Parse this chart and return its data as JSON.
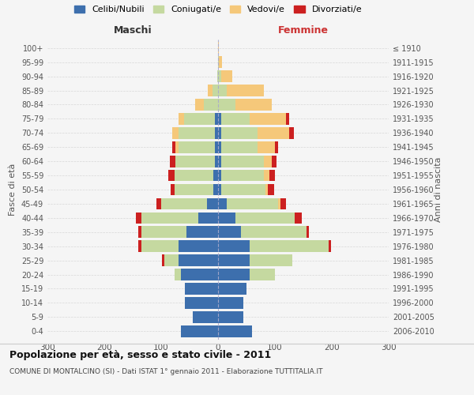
{
  "age_groups": [
    "0-4",
    "5-9",
    "10-14",
    "15-19",
    "20-24",
    "25-29",
    "30-34",
    "35-39",
    "40-44",
    "45-49",
    "50-54",
    "55-59",
    "60-64",
    "65-69",
    "70-74",
    "75-79",
    "80-84",
    "85-89",
    "90-94",
    "95-99",
    "100+"
  ],
  "birth_years": [
    "2006-2010",
    "2001-2005",
    "1996-2000",
    "1991-1995",
    "1986-1990",
    "1981-1985",
    "1976-1980",
    "1971-1975",
    "1966-1970",
    "1961-1965",
    "1956-1960",
    "1951-1955",
    "1946-1950",
    "1941-1945",
    "1936-1940",
    "1931-1935",
    "1926-1930",
    "1921-1925",
    "1916-1920",
    "1911-1915",
    "≤ 1910"
  ],
  "males": {
    "celibi": [
      65,
      45,
      58,
      58,
      65,
      70,
      70,
      55,
      35,
      20,
      8,
      8,
      5,
      5,
      5,
      5,
      0,
      0,
      0,
      0,
      0
    ],
    "coniugati": [
      0,
      0,
      0,
      0,
      12,
      25,
      65,
      80,
      100,
      80,
      68,
      68,
      70,
      65,
      65,
      55,
      25,
      10,
      2,
      0,
      0
    ],
    "vedovi": [
      0,
      0,
      0,
      0,
      0,
      0,
      0,
      0,
      0,
      0,
      0,
      0,
      0,
      5,
      10,
      10,
      15,
      8,
      0,
      0,
      0
    ],
    "divorziati": [
      0,
      0,
      0,
      0,
      0,
      3,
      5,
      5,
      10,
      8,
      8,
      12,
      10,
      5,
      0,
      0,
      0,
      0,
      0,
      0,
      0
    ]
  },
  "females": {
    "nubili": [
      60,
      45,
      45,
      50,
      55,
      55,
      55,
      40,
      30,
      15,
      5,
      5,
      5,
      5,
      5,
      5,
      0,
      0,
      0,
      0,
      0
    ],
    "coniugate": [
      0,
      0,
      0,
      0,
      45,
      75,
      140,
      115,
      105,
      90,
      78,
      75,
      75,
      65,
      65,
      50,
      30,
      15,
      5,
      2,
      0
    ],
    "vedove": [
      0,
      0,
      0,
      0,
      0,
      0,
      0,
      0,
      0,
      5,
      5,
      10,
      15,
      30,
      55,
      65,
      65,
      65,
      20,
      5,
      2
    ],
    "divorziate": [
      0,
      0,
      0,
      0,
      0,
      0,
      3,
      5,
      12,
      10,
      10,
      10,
      8,
      5,
      8,
      5,
      0,
      0,
      0,
      0,
      0
    ]
  },
  "colors": {
    "celibi": "#3d6fad",
    "coniugati": "#c5d9a0",
    "vedovi": "#f5c87a",
    "divorziati": "#cc2020"
  },
  "title": "Popolazione per età, sesso e stato civile - 2011",
  "subtitle": "COMUNE DI MONTALCINO (SI) - Dati ISTAT 1° gennaio 2011 - Elaborazione TUTTITALIA.IT",
  "ylabel_left": "Fasce di età",
  "ylabel_right": "Anni di nascita",
  "xlabel_left": "Maschi",
  "xlabel_right": "Femmine",
  "xlim": 300,
  "legend_labels": [
    "Celibi/Nubili",
    "Coniugati/e",
    "Vedovi/e",
    "Divorziati/e"
  ],
  "background_color": "#f5f5f5",
  "grid_color": "#cccccc"
}
